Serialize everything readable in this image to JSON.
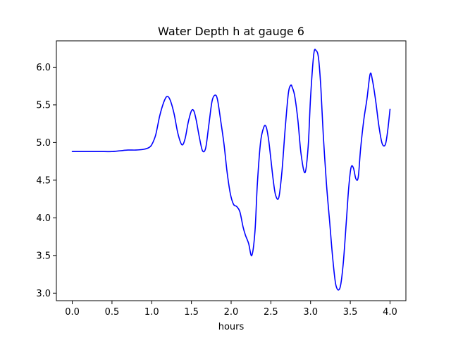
{
  "chart_data": {
    "type": "line",
    "title": "Water Depth h at gauge 6",
    "xlabel": "hours",
    "ylabel": "",
    "xlim": [
      -0.2,
      4.2
    ],
    "ylim": [
      2.9,
      6.35
    ],
    "xticks": [
      0.0,
      0.5,
      1.0,
      1.5,
      2.0,
      2.5,
      3.0,
      3.5,
      4.0
    ],
    "xtick_labels": [
      "0.0",
      "0.5",
      "1.0",
      "1.5",
      "2.0",
      "2.5",
      "3.0",
      "3.5",
      "4.0"
    ],
    "yticks": [
      3.0,
      3.5,
      4.0,
      4.5,
      5.0,
      5.5,
      6.0
    ],
    "ytick_labels": [
      "3.0",
      "3.5",
      "4.0",
      "4.5",
      "5.0",
      "5.5",
      "6.0"
    ],
    "grid": false,
    "legend": "none",
    "series": [
      {
        "color": "#0000ff",
        "x": [
          0.0,
          0.2,
          0.4,
          0.5,
          0.6,
          0.7,
          0.8,
          0.9,
          0.96,
          1.0,
          1.05,
          1.1,
          1.15,
          1.19,
          1.23,
          1.28,
          1.33,
          1.38,
          1.42,
          1.46,
          1.5,
          1.53,
          1.56,
          1.6,
          1.64,
          1.68,
          1.72,
          1.76,
          1.8,
          1.83,
          1.87,
          1.91,
          1.95,
          1.99,
          2.03,
          2.07,
          2.11,
          2.15,
          2.18,
          2.22,
          2.26,
          2.3,
          2.33,
          2.37,
          2.41,
          2.44,
          2.47,
          2.5,
          2.53,
          2.56,
          2.6,
          2.64,
          2.68,
          2.72,
          2.75,
          2.77,
          2.8,
          2.84,
          2.88,
          2.93,
          2.97,
          3.0,
          3.04,
          3.07,
          3.1,
          3.13,
          3.16,
          3.2,
          3.24,
          3.28,
          3.32,
          3.37,
          3.41,
          3.45,
          3.48,
          3.51,
          3.54,
          3.57,
          3.6,
          3.63,
          3.67,
          3.71,
          3.75,
          3.78,
          3.82,
          3.86,
          3.9,
          3.94,
          3.97,
          4.0
        ],
        "y": [
          4.88,
          4.88,
          4.88,
          4.88,
          4.89,
          4.9,
          4.9,
          4.91,
          4.93,
          4.97,
          5.1,
          5.35,
          5.53,
          5.61,
          5.57,
          5.39,
          5.12,
          4.97,
          5.05,
          5.27,
          5.42,
          5.42,
          5.3,
          5.07,
          4.89,
          4.93,
          5.24,
          5.55,
          5.63,
          5.56,
          5.28,
          4.98,
          4.6,
          4.32,
          4.18,
          4.15,
          4.08,
          3.88,
          3.77,
          3.66,
          3.5,
          3.82,
          4.45,
          5.0,
          5.2,
          5.21,
          5.05,
          4.78,
          4.5,
          4.3,
          4.27,
          4.62,
          5.18,
          5.65,
          5.76,
          5.73,
          5.62,
          5.3,
          4.85,
          4.6,
          4.95,
          5.6,
          6.17,
          6.22,
          6.12,
          5.72,
          5.1,
          4.45,
          3.95,
          3.45,
          3.1,
          3.07,
          3.38,
          3.95,
          4.4,
          4.67,
          4.66,
          4.52,
          4.54,
          4.92,
          5.3,
          5.58,
          5.91,
          5.82,
          5.55,
          5.22,
          4.99,
          4.97,
          5.15,
          5.44
        ]
      }
    ]
  }
}
